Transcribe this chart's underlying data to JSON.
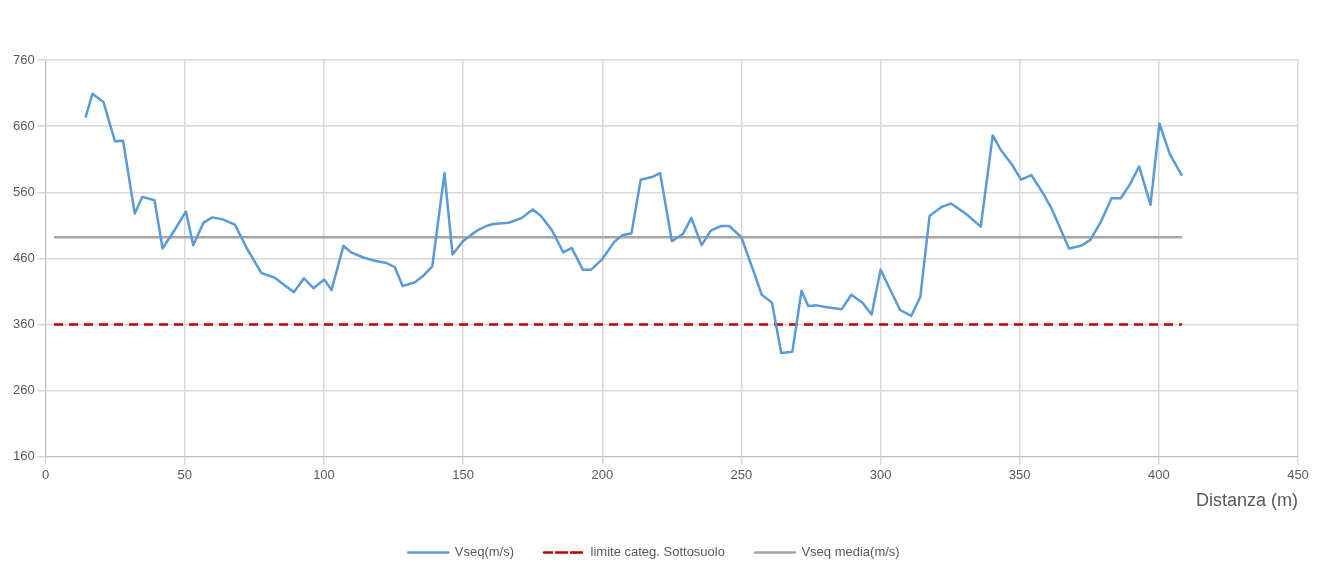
{
  "chart_data": {
    "type": "line",
    "xlabel": "Distanza (m)",
    "xlim": [
      0,
      450
    ],
    "xticks": [
      0,
      50,
      100,
      150,
      200,
      250,
      300,
      350,
      400,
      450
    ],
    "ylim": [
      160,
      760
    ],
    "yticks": [
      160,
      260,
      360,
      460,
      560,
      660,
      760
    ],
    "grid": true,
    "legend": "bottom",
    "marker": "none",
    "series": [
      {
        "name": "Vseq(m/s)",
        "color": "#5b9bd5",
        "line_style": "solid",
        "x": [
          14.3,
          16.8,
          20.8,
          24.9,
          27.8,
          32,
          34.7,
          39.1,
          42,
          46.8,
          50.4,
          53,
          56.7,
          59.9,
          63.6,
          68,
          72.7,
          77.5,
          82.2,
          86.3,
          89.2,
          92.8,
          96.2,
          100.1,
          102.7,
          107,
          109.8,
          114.4,
          118.6,
          122.5,
          125.4,
          128.3,
          132.7,
          136,
          138.9,
          143.3,
          146.2,
          149.9,
          155,
          158.3,
          160.8,
          166.3,
          168.5,
          171,
          175,
          178,
          182,
          186,
          189,
          193,
          196,
          200,
          204.3,
          207.2,
          210.5,
          213.8,
          217.8,
          220.8,
          225,
          229,
          232,
          235.7,
          239,
          242.7,
          245.6,
          250,
          254.4,
          257.3,
          261,
          264.3,
          268.3,
          271.6,
          274,
          277,
          280.7,
          286,
          289.5,
          293.5,
          296.8,
          300,
          304,
          307,
          311,
          314.3,
          317.6,
          322,
          325.3,
          330.8,
          336,
          340.3,
          343.2,
          347.2,
          350.5,
          354.2,
          358.6,
          361.5,
          367.7,
          372,
          375.4,
          379,
          383,
          386.3,
          389.6,
          392.9,
          397,
          400.2,
          403.9,
          408.3
        ],
        "values": [
          673,
          709,
          696,
          637,
          638,
          528,
          553,
          548,
          475,
          506,
          531,
          480,
          514,
          522,
          519,
          511,
          472,
          438,
          431,
          418,
          409,
          430,
          415,
          428,
          412,
          479,
          469,
          461,
          456,
          453,
          447,
          418,
          424,
          435,
          448,
          589,
          466,
          486,
          502,
          509,
          512,
          514,
          517,
          521,
          534,
          524,
          502,
          469,
          476,
          443,
          443,
          459,
          485,
          495,
          498,
          579,
          583,
          589,
          486,
          497,
          521,
          480,
          502,
          509,
          509,
          492,
          440,
          405,
          393,
          317,
          319,
          411,
          388,
          389,
          386,
          383,
          405,
          393,
          375,
          443,
          408,
          382,
          373,
          402,
          524,
          538,
          543,
          527,
          508,
          646,
          624,
          602,
          579,
          586,
          557,
          535,
          475,
          479,
          488,
          514,
          551,
          551,
          572,
          599,
          541,
          664,
          618,
          585
        ]
      },
      {
        "name": "limite categ. Sottosuolo",
        "color": "#c00000",
        "line_style": "dashed",
        "x": [
          3,
          408.3
        ],
        "values": [
          360,
          360
        ]
      },
      {
        "name": "Vseq media(m/s)",
        "color": "#a5a5a5",
        "line_style": "solid",
        "x": [
          3,
          408.3
        ],
        "values": [
          492,
          492
        ]
      }
    ]
  }
}
